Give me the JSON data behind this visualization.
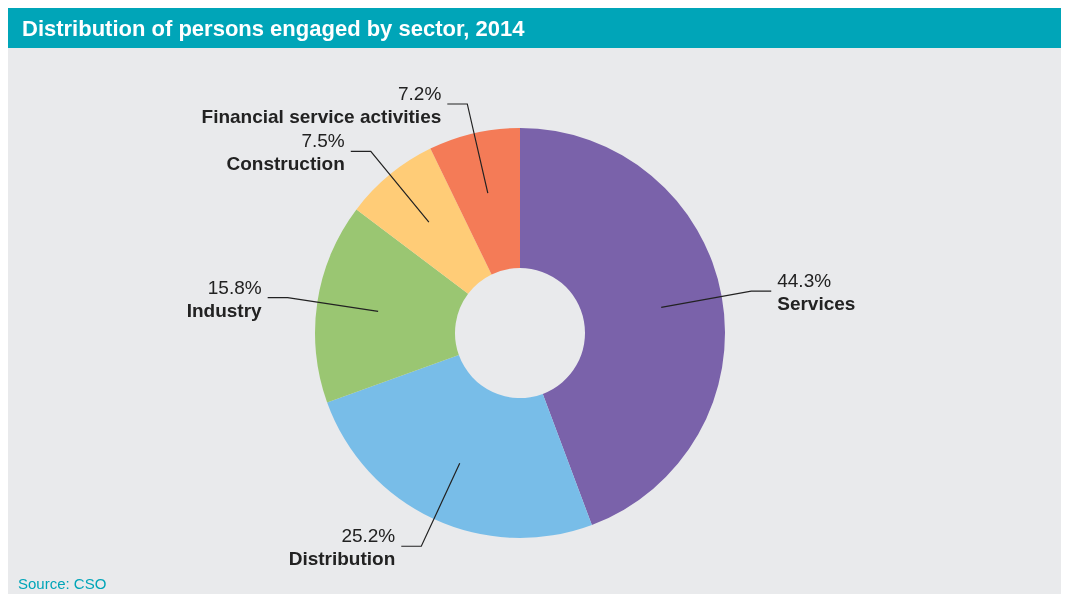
{
  "chart_data": {
    "type": "donut",
    "title": "Distribution of persons engaged by sector, 2014",
    "categories": [
      "Services",
      "Distribution",
      "Industry",
      "Construction",
      "Financial service activities"
    ],
    "values": [
      44.3,
      25.2,
      15.8,
      7.5,
      7.2
    ],
    "colors": [
      "#7a62aa",
      "#78bde8",
      "#9ac672",
      "#ffcc77",
      "#f47b57"
    ],
    "value_labels": [
      "44.3%",
      "25.2%",
      "15.8%",
      "7.5%",
      "7.2%"
    ],
    "legend": false,
    "annotations": [
      "Source: CSO"
    ]
  }
}
